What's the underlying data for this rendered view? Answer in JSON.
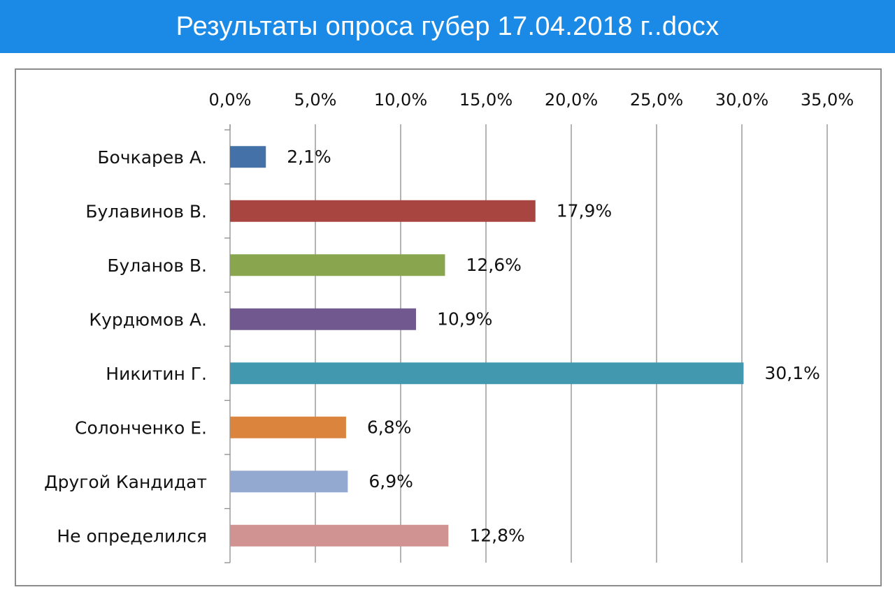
{
  "header": {
    "title": "Результаты опроса губер 17.04.2018 г..docx"
  },
  "chart_data": {
    "type": "bar",
    "orientation": "horizontal",
    "categories": [
      "Бочкарев А.",
      "Булавинов В.",
      "Буланов В.",
      "Курдюмов А.",
      "Никитин Г.",
      "Солонченко Е.",
      "Другой Кандидат",
      "Не определился"
    ],
    "values": [
      2.1,
      17.9,
      12.6,
      10.9,
      30.1,
      6.8,
      6.9,
      12.8
    ],
    "value_labels": [
      "2,1%",
      "17,9%",
      "12,6%",
      "10,9%",
      "30,1%",
      "6,8%",
      "6,9%",
      "12,8%"
    ],
    "colors": [
      "#4472a8",
      "#a94540",
      "#89a54e",
      "#71588f",
      "#4198af",
      "#db843d",
      "#93a9cf",
      "#d19392"
    ],
    "xlim": [
      0,
      35
    ],
    "ticks": [
      0,
      5,
      10,
      15,
      20,
      25,
      30,
      35
    ],
    "tick_labels": [
      "0,0%",
      "5,0%",
      "10,0%",
      "15,0%",
      "20,0%",
      "25,0%",
      "30,0%",
      "35,0%"
    ],
    "axis_position": "top",
    "grid": true,
    "legend": "none"
  }
}
